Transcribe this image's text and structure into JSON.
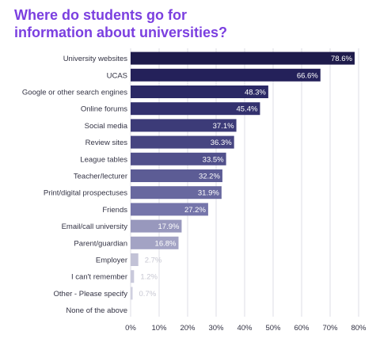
{
  "title_line1": "Where do students go for",
  "title_line2": "information about universities?",
  "chart_data": {
    "type": "bar",
    "orientation": "horizontal",
    "categories": [
      "University websites",
      "UCAS",
      "Google or other search engines",
      "Online forums",
      "Social media",
      "Review sites",
      "League tables",
      "Teacher/lecturer",
      "Print/digital prospectuses",
      "Friends",
      "Email/call university",
      "Parent/guardian",
      "Employer",
      "I can't remember",
      "Other - Please specify",
      "None of the above"
    ],
    "values": [
      78.6,
      66.6,
      48.3,
      45.4,
      37.1,
      36.3,
      33.5,
      32.2,
      31.9,
      27.2,
      17.9,
      16.8,
      2.7,
      1.2,
      0.7,
      0
    ],
    "labels": [
      "78.6%",
      "66.6%",
      "48.3%",
      "45.4%",
      "37.1%",
      "36.3%",
      "33.5%",
      "32.2%",
      "31.9%",
      "27.2%",
      "17.9%",
      "16.8%",
      "2.7%",
      "1.2%",
      "0.7%",
      ""
    ],
    "colors": [
      "#1e1b4b",
      "#24215a",
      "#2b2965",
      "#33316e",
      "#3c3b78",
      "#464581",
      "#51508b",
      "#5c5c95",
      "#68689f",
      "#7575aa",
      "#9898bd",
      "#a3a3c4",
      "#c2c2d6",
      "#c9c9db",
      "#d0d0e0",
      "#d6d6e4"
    ],
    "xticks": [
      "0%",
      "10%",
      "20%",
      "30%",
      "40%",
      "50%",
      "60%",
      "70%",
      "80%"
    ],
    "xlim": [
      0,
      80
    ],
    "grid": true
  }
}
